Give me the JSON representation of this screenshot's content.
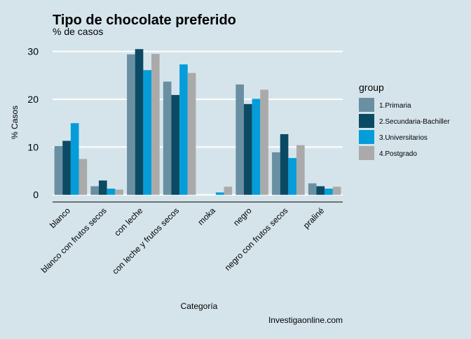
{
  "chart_data": {
    "type": "bar",
    "title": "Tipo de chocolate preferido",
    "subtitle": "% de casos",
    "xlabel": "Categoría",
    "ylabel": "% Casos",
    "caption": "Investigaonline.com",
    "ylim": [
      -1.5,
      32
    ],
    "yticks": [
      0,
      10,
      20,
      30
    ],
    "grid": "horizontal",
    "legend_position": "right",
    "legend_title": "group",
    "categories": [
      "blanco",
      "blanco con frutos secos",
      "con leche",
      "con leche y frutos secos",
      "moka",
      "negro",
      "negro con frutos secos",
      "praliné"
    ],
    "series": [
      {
        "name": "1.Primaria",
        "color": "#6a8fa3",
        "values": [
          10.2,
          1.8,
          29.4,
          23.7,
          0.0,
          23.1,
          8.9,
          2.4
        ]
      },
      {
        "name": "2.Secundaria-Bachiller",
        "color": "#0b4a63",
        "values": [
          11.3,
          3.0,
          30.5,
          20.9,
          0.0,
          19.0,
          12.7,
          1.8
        ]
      },
      {
        "name": "3.Universitarios",
        "color": "#049dd9",
        "values": [
          15.0,
          1.3,
          26.1,
          27.3,
          0.5,
          20.1,
          7.7,
          1.3
        ]
      },
      {
        "name": "4.Postgrado",
        "color": "#aaaaaa",
        "values": [
          7.5,
          1.1,
          29.5,
          25.5,
          1.7,
          22.0,
          10.4,
          1.7
        ]
      }
    ]
  }
}
